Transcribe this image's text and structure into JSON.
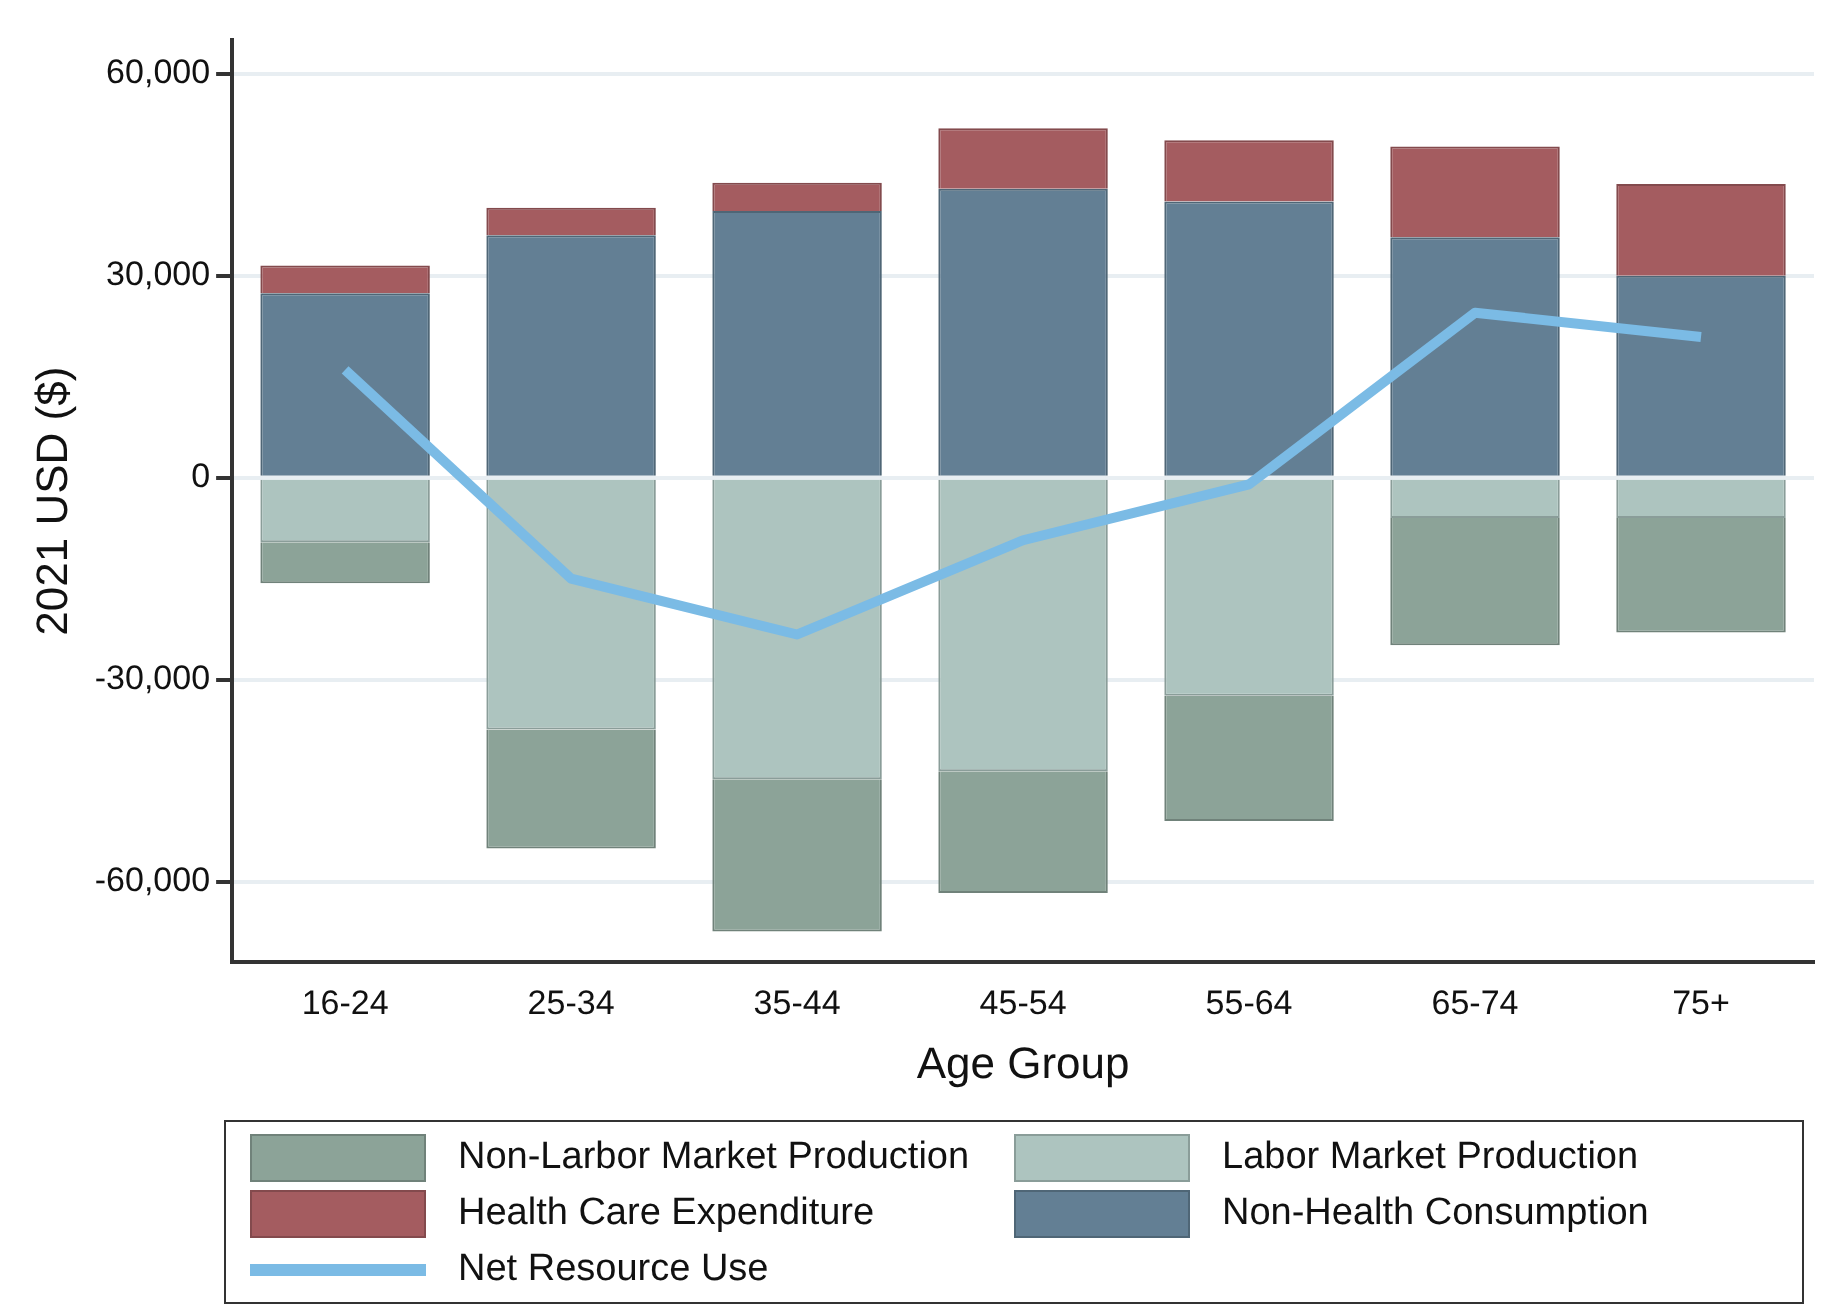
{
  "chart_data": {
    "type": "bar",
    "stacked": true,
    "xlabel": "Age Group",
    "ylabel": "2021 USD ($)",
    "categories": [
      "16-24",
      "25-34",
      "35-44",
      "45-54",
      "55-64",
      "65-74",
      "75+"
    ],
    "ylim": [
      -72000,
      65000
    ],
    "yticks": [
      {
        "value": -60000,
        "label": "-60,000"
      },
      {
        "value": -30000,
        "label": "-30,000"
      },
      0,
      {
        "value": 30000,
        "label": "30,000"
      },
      {
        "value": 60000,
        "label": "60,000"
      }
    ],
    "grid": "y",
    "legend": "bottom",
    "series": [
      {
        "name": "Labor Market Production",
        "color": "#adc4bf",
        "values": [
          -9600,
          -37400,
          -44800,
          -43600,
          -32400,
          -6000,
          -6000
        ]
      },
      {
        "name": "Non-Larbor Market Production",
        "color": "#8ca398",
        "values": [
          -6100,
          -17700,
          -22600,
          -18100,
          -18600,
          -18900,
          -17000
        ]
      },
      {
        "name": "Non-Health Consumption",
        "color": "#637f94",
        "values": [
          27400,
          36000,
          39600,
          42900,
          41000,
          35700,
          30000
        ]
      },
      {
        "name": "Health Care Expenditure",
        "color": "#a45c60",
        "values": [
          4100,
          4100,
          4200,
          9000,
          9100,
          13500,
          13600
        ]
      },
      {
        "name": "Net Resource Use",
        "type": "line",
        "color": "#7bbbe5",
        "values": [
          16000,
          -15000,
          -23300,
          -9300,
          -1000,
          24500,
          20900
        ]
      }
    ]
  }
}
